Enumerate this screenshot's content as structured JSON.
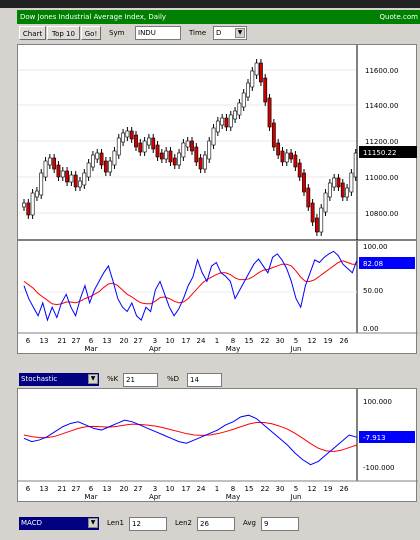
{
  "title": "Dow Jones Industrial Average Index, Daily",
  "source": "Quote.com",
  "toolbar": {
    "chart_button": "Chart",
    "top10_button": "Top 10",
    "go_button": "Go!",
    "sym_label": "Sym",
    "sym_value": "INDU",
    "time_label": "Time",
    "time_value": "D"
  },
  "price": {
    "y_ticks": [
      "11600.00",
      "11400.00",
      "11200.00",
      "11000.00",
      "10800.00"
    ],
    "last": "11150.22"
  },
  "stochastic": {
    "y_ticks": [
      "100.00",
      "50.00",
      "0.00"
    ],
    "last": "82.08",
    "selector": "Stochastic",
    "k_label": "%K",
    "k_value": "21",
    "d_label": "%D",
    "d_value": "14"
  },
  "macd": {
    "y_ticks": [
      "100.000",
      "-100.000"
    ],
    "last": "-7.913",
    "selector": "MACD",
    "len1_label": "Len1",
    "len1_value": "12",
    "len2_label": "Len2",
    "len2_value": "26",
    "avg_label": "Avg",
    "avg_value": "9"
  },
  "x_axis": {
    "days": [
      "6",
      "13",
      "21",
      "27",
      "6",
      "13",
      "20",
      "27",
      "3",
      "10",
      "17",
      "24",
      "1",
      "8",
      "15",
      "22",
      "30",
      "5",
      "12",
      "19",
      "26"
    ],
    "months": [
      "Mar",
      "Apr",
      "May",
      "Jun"
    ]
  },
  "colors": {
    "up_candle": "#ffffff",
    "down_candle": "#cc0000",
    "k_line": "#0000ff",
    "d_line": "#ff0000",
    "title_bg": "#008000"
  }
}
